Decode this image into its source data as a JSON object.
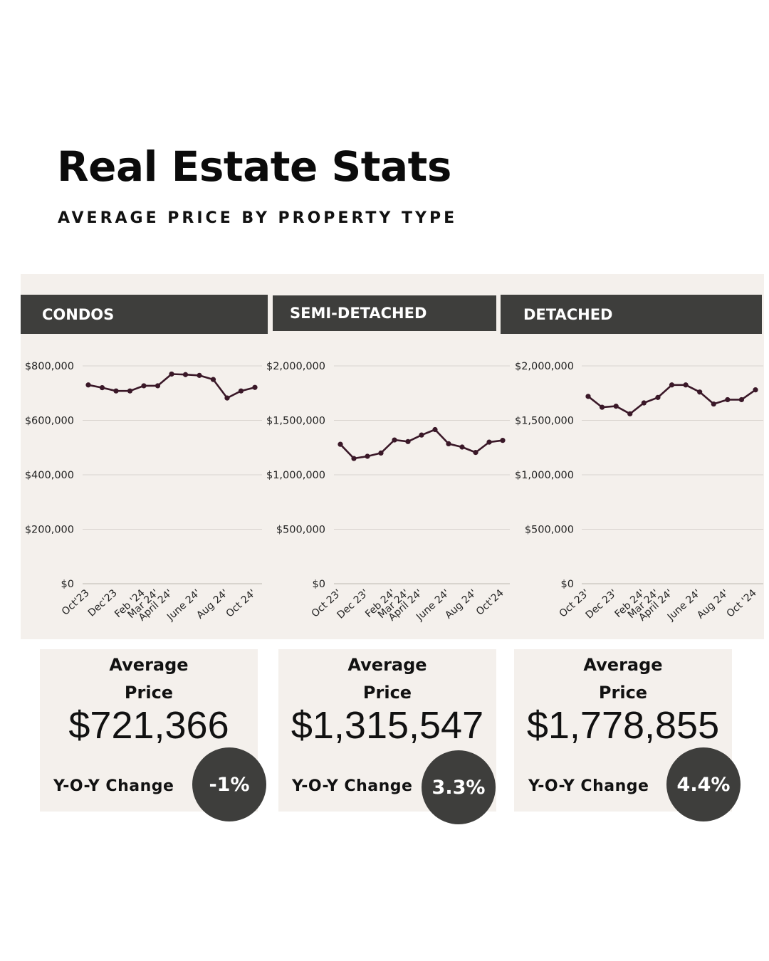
{
  "header": {
    "title": "Real Estate Stats",
    "subtitle": "AVERAGE PRICE BY PROPERTY TYPE"
  },
  "colors": {
    "panel_bg": "#f4f0ec",
    "header_bg": "#3e3e3c",
    "line": "#3a1828",
    "grid": "#d9d4cf",
    "badge_bg": "#3e3e3c"
  },
  "chart_data": [
    {
      "type": "line",
      "title": "CONDOS",
      "ylim": [
        0,
        800000
      ],
      "yticks": [
        0,
        200000,
        400000,
        600000,
        800000
      ],
      "ytick_labels": [
        "$0",
        "$200,000",
        "$400,000",
        "$600,000",
        "$800,000"
      ],
      "x_labels": [
        "Oct'23",
        "Dec'23",
        "Feb '24",
        "Mar 24'",
        "April 24'",
        "June 24'",
        "Aug 24'",
        "Oct 24'"
      ],
      "x_label_index": [
        0,
        2,
        4,
        5,
        6,
        8,
        10,
        12
      ],
      "series": [
        {
          "values": [
            730000,
            720000,
            708000,
            708000,
            727000,
            727000,
            770000,
            768000,
            765000,
            750000,
            682000,
            708000,
            721000
          ]
        }
      ],
      "grid": true
    },
    {
      "type": "line",
      "title": "SEMI-DETACHED",
      "ylim": [
        0,
        2000000
      ],
      "yticks": [
        0,
        500000,
        1000000,
        1500000,
        2000000
      ],
      "ytick_labels": [
        "$0",
        "$500,000",
        "$1,000,000",
        "$1,500,000",
        "$2,000,000"
      ],
      "x_labels": [
        "Oct 23'",
        "Dec 23'",
        "Feb 24'",
        "Mar 24'",
        "April 24'",
        "June 24'",
        "Aug 24'",
        "Oct'24"
      ],
      "x_label_index": [
        0,
        2,
        4,
        5,
        6,
        8,
        10,
        12
      ],
      "series": [
        {
          "values": [
            1280000,
            1150000,
            1170000,
            1200000,
            1320000,
            1305000,
            1365000,
            1415000,
            1285000,
            1255000,
            1205000,
            1300000,
            1316000
          ]
        }
      ],
      "grid": true
    },
    {
      "type": "line",
      "title": "DETACHED",
      "ylim": [
        0,
        2000000
      ],
      "yticks": [
        0,
        500000,
        1000000,
        1500000,
        2000000
      ],
      "ytick_labels": [
        "$0",
        "$500,000",
        "$1,000,000",
        "$1,500,000",
        "$2,000,000"
      ],
      "x_labels": [
        "Oct 23'",
        "Dec 23'",
        "Feb 24'",
        "Mar 24'",
        "April 24'",
        "June 24'",
        "Aug 24'",
        "Oct '24"
      ],
      "x_label_index": [
        0,
        2,
        4,
        5,
        6,
        8,
        10,
        12
      ],
      "series": [
        {
          "values": [
            1720000,
            1620000,
            1630000,
            1560000,
            1660000,
            1710000,
            1825000,
            1825000,
            1760000,
            1650000,
            1690000,
            1690000,
            1780000
          ]
        }
      ],
      "grid": true
    }
  ],
  "cards": [
    {
      "avg_line1": "Average",
      "avg_line2": "Price",
      "price": "$721,366",
      "yoy_label": "Y-O-Y Change",
      "yoy_value": "-1%"
    },
    {
      "avg_line1": "Average",
      "avg_line2": "Price",
      "price": "$1,315,547",
      "yoy_label": "Y-O-Y Change",
      "yoy_value": "3.3%"
    },
    {
      "avg_line1": "Average",
      "avg_line2": "Price",
      "price": "$1,778,855",
      "yoy_label": "Y-O-Y Change",
      "yoy_value": "4.4%"
    }
  ]
}
